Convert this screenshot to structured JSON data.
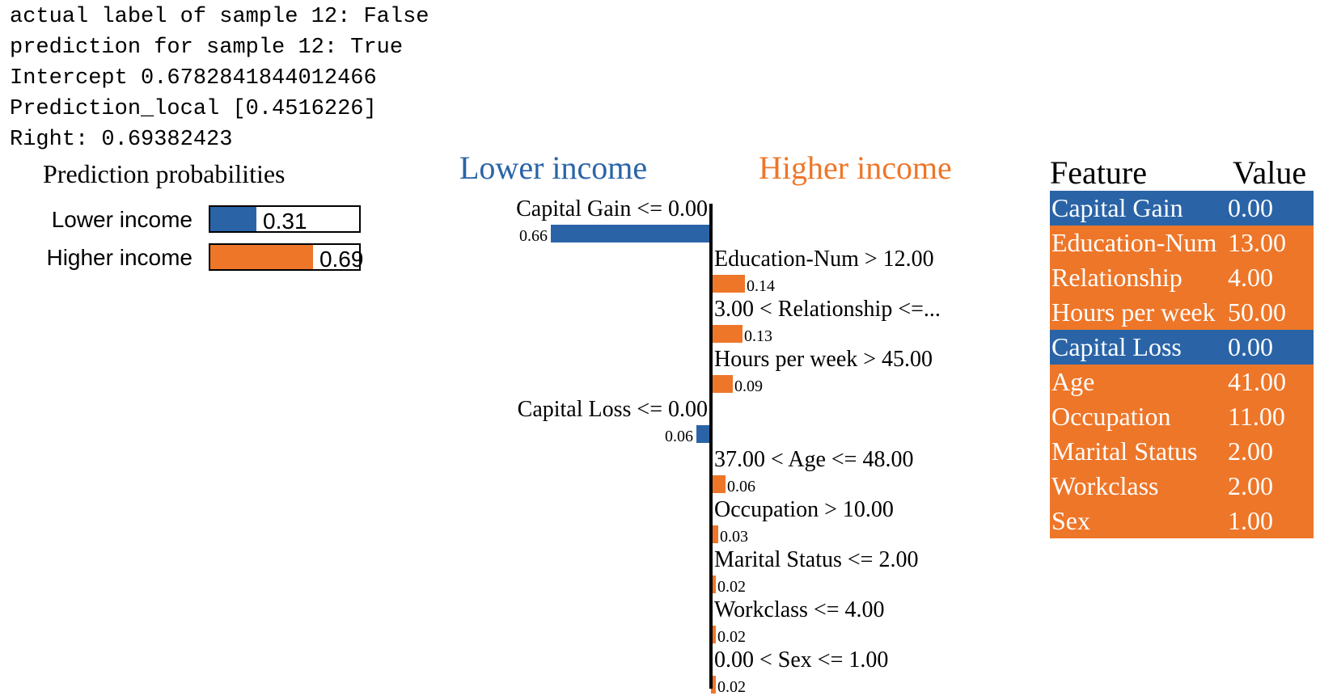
{
  "console": {
    "lines": [
      "actual label of sample 12: False",
      "prediction for sample 12: True",
      "Intercept 0.6782841844012466",
      "Prediction_local [0.4516226]",
      "Right: 0.69382423"
    ]
  },
  "prediction_probabilities": {
    "title": "Prediction probabilities",
    "rows": [
      {
        "label": "Lower income",
        "value": 0.31,
        "value_text": "0.31",
        "color": "#2a64a7"
      },
      {
        "label": "Higher income",
        "value": 0.69,
        "value_text": "0.69",
        "color": "#ee7628"
      }
    ]
  },
  "colors": {
    "lower": "#2a64a7",
    "higher": "#ee7628"
  },
  "chart_data": {
    "type": "bar",
    "title": "",
    "headings": {
      "negative": "Lower income",
      "positive": "Higher income"
    },
    "bars": [
      {
        "label": "Capital Gain <= 0.00",
        "value": -0.66,
        "value_text": "0.66"
      },
      {
        "label": "Education-Num > 12.00",
        "value": 0.14,
        "value_text": "0.14"
      },
      {
        "label": "3.00 < Relationship <=...",
        "value": 0.13,
        "value_text": "0.13"
      },
      {
        "label": "Hours per week > 45.00",
        "value": 0.09,
        "value_text": "0.09"
      },
      {
        "label": "Capital Loss <= 0.00",
        "value": -0.06,
        "value_text": "0.06"
      },
      {
        "label": "37.00 < Age <= 48.00",
        "value": 0.06,
        "value_text": "0.06"
      },
      {
        "label": "Occupation > 10.00",
        "value": 0.03,
        "value_text": "0.03"
      },
      {
        "label": "Marital Status <= 2.00",
        "value": 0.02,
        "value_text": "0.02"
      },
      {
        "label": "Workclass <= 4.00",
        "value": 0.02,
        "value_text": "0.02"
      },
      {
        "label": "0.00 < Sex <= 1.00",
        "value": 0.02,
        "value_text": "0.02"
      }
    ]
  },
  "feature_table": {
    "headers": {
      "feature": "Feature",
      "value": "Value"
    },
    "rows": [
      {
        "feature": "Capital Gain",
        "value": "0.00",
        "side": "lower"
      },
      {
        "feature": "Education-Num",
        "value": "13.00",
        "side": "higher"
      },
      {
        "feature": "Relationship",
        "value": "4.00",
        "side": "higher"
      },
      {
        "feature": "Hours per week",
        "value": "50.00",
        "side": "higher"
      },
      {
        "feature": "Capital Loss",
        "value": "0.00",
        "side": "lower"
      },
      {
        "feature": "Age",
        "value": "41.00",
        "side": "higher"
      },
      {
        "feature": "Occupation",
        "value": "11.00",
        "side": "higher"
      },
      {
        "feature": "Marital Status",
        "value": "2.00",
        "side": "higher"
      },
      {
        "feature": "Workclass",
        "value": "2.00",
        "side": "higher"
      },
      {
        "feature": "Sex",
        "value": "1.00",
        "side": "higher"
      }
    ]
  }
}
